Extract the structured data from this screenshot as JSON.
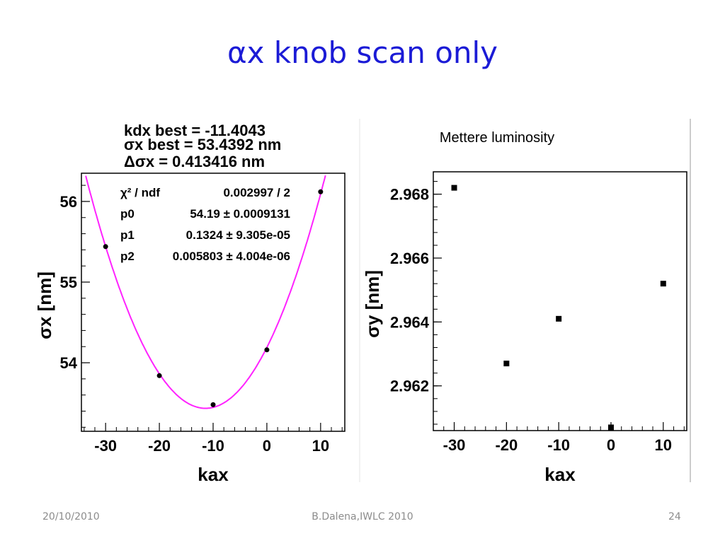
{
  "slide": {
    "title": "αx knob scan only",
    "footer_date": "20/10/2010",
    "footer_author": "B.Dalena,IWLC 2010",
    "footer_page": "24"
  },
  "colors": {
    "title": "#1b1bd6",
    "fit_curve": "#ff22ff",
    "markers": "#000000"
  },
  "chart_data": [
    {
      "type": "scatter",
      "title_lines": [
        "kdx best = -11.4043",
        "σx best = 53.4392 nm",
        "Δσx = 0.413416 nm"
      ],
      "xlabel": "kax",
      "ylabel": "σx [nm]",
      "xlim": [
        -34.5,
        14.5
      ],
      "ylim": [
        53.15,
        56.35
      ],
      "xticks": [
        -30,
        -20,
        -10,
        0,
        10
      ],
      "yticks": [
        54,
        55,
        56
      ],
      "x": [
        -30,
        -20,
        -10,
        0,
        10
      ],
      "y": [
        55.44,
        53.84,
        53.48,
        54.16,
        56.12
      ],
      "fit": {
        "function": "pol2",
        "p0": 54.19,
        "p1": 0.1324,
        "p2": 0.005803
      },
      "stats": [
        {
          "label": "χ² / ndf",
          "value": "0.002997 / 2"
        },
        {
          "label": "p0",
          "value": "54.19 ± 0.0009131"
        },
        {
          "label": "p1",
          "value": "0.1324 ± 9.305e-05"
        },
        {
          "label": "p2",
          "value": "0.005803 ± 4.004e-06"
        }
      ],
      "grid": false
    },
    {
      "type": "scatter",
      "title": "Mettere luminosity",
      "xlabel": "kax",
      "ylabel": "σy [nm]",
      "xlim": [
        -34,
        14.5
      ],
      "ylim": [
        2.9606,
        2.9687
      ],
      "xticks": [
        -30,
        -20,
        -10,
        0,
        10
      ],
      "yticks": [
        2.962,
        2.964,
        2.966,
        2.968
      ],
      "x": [
        -30,
        -20,
        -10,
        0,
        10
      ],
      "y": [
        2.9682,
        2.9627,
        2.9641,
        2.9607,
        2.9652
      ],
      "grid": false
    }
  ]
}
